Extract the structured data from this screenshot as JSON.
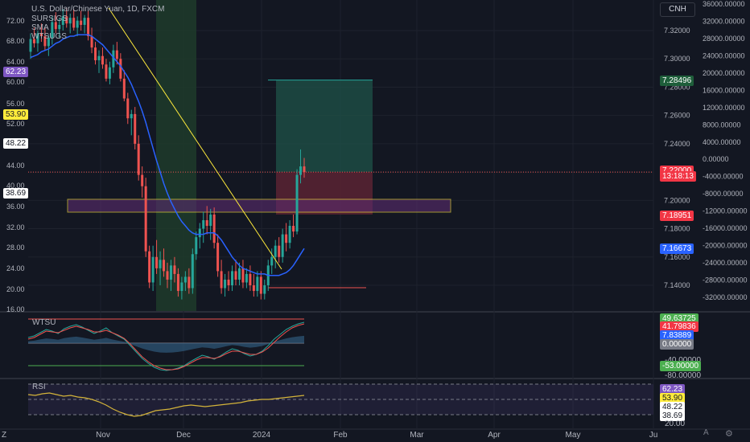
{
  "header": {
    "title": "U.S. Dollar/Chinese Yuan, 1D, FXCM",
    "indicators": [
      "SURSIGS",
      "SMA",
      "WTSUGS"
    ],
    "currency_button": "CNH"
  },
  "colors": {
    "background": "#131722",
    "up": "#26a69a",
    "down": "#ef5350",
    "sma": "#2962ff",
    "trendline": "#ffeb3b",
    "zone_border": "#ffeb3b",
    "zone_fill": "#5b2c6f",
    "target_box": "#1e4f46",
    "stop_box": "#5b2333"
  },
  "chart_data": [
    {
      "type": "candlestick",
      "title": "U.S. Dollar/Chinese Yuan, 1D, FXCM",
      "price_axis": [
        "7.32000",
        "7.30000",
        "7.28000",
        "7.26000",
        "7.24000",
        "7.22000",
        "7.20000",
        "7.18000",
        "7.16000",
        "7.14000"
      ],
      "osc_axis": [
        "36000.00000",
        "32000.00000",
        "28000.00000",
        "24000.00000",
        "20000.00000",
        "16000.00000",
        "12000.00000",
        "8000.00000",
        "4000.00000",
        "0.00000",
        "-4000.00000",
        "-8000.00000",
        "-12000.00000",
        "-16000.00000",
        "-20000.00000",
        "-24000.00000",
        "-28000.00000",
        "-32000.00000"
      ],
      "left_axis": [
        "72.00",
        "68.00",
        "64.00",
        "60.00",
        "56.00",
        "52.00",
        "44.00",
        "40.00",
        "36.00",
        "32.00",
        "28.00",
        "24.00",
        "20.00",
        "16.00"
      ],
      "x_labels": [
        "Z",
        "Nov",
        "Dec",
        "2024",
        "Feb",
        "Mar",
        "Apr",
        "May",
        "Ju"
      ],
      "price_tags": {
        "target": "7.28496",
        "current": "7.22000",
        "countdown": "13:18:13",
        "stop": "7.18951",
        "sma": "7.16673"
      },
      "left_tags": {
        "purple": "62.23",
        "yellow": "53.90",
        "white1": "48.22",
        "white2": "38.69"
      },
      "ohlc": [
        [
          7.305,
          7.318,
          7.3,
          7.314
        ],
        [
          7.314,
          7.322,
          7.308,
          7.311
        ],
        [
          7.311,
          7.32,
          7.305,
          7.318
        ],
        [
          7.318,
          7.325,
          7.312,
          7.316
        ],
        [
          7.316,
          7.322,
          7.306,
          7.309
        ],
        [
          7.309,
          7.317,
          7.302,
          7.315
        ],
        [
          7.315,
          7.33,
          7.31,
          7.326
        ],
        [
          7.326,
          7.333,
          7.318,
          7.321
        ],
        [
          7.321,
          7.329,
          7.315,
          7.324
        ],
        [
          7.324,
          7.335,
          7.32,
          7.33
        ],
        [
          7.33,
          7.336,
          7.322,
          7.325
        ],
        [
          7.325,
          7.332,
          7.318,
          7.329
        ],
        [
          7.329,
          7.335,
          7.32,
          7.322
        ],
        [
          7.322,
          7.33,
          7.316,
          7.327
        ],
        [
          7.327,
          7.334,
          7.32,
          7.324
        ],
        [
          7.324,
          7.331,
          7.318,
          7.329
        ],
        [
          7.329,
          7.334,
          7.313,
          7.316
        ],
        [
          7.316,
          7.322,
          7.304,
          7.308
        ],
        [
          7.308,
          7.312,
          7.296,
          7.299
        ],
        [
          7.299,
          7.306,
          7.29,
          7.302
        ],
        [
          7.302,
          7.308,
          7.293,
          7.296
        ],
        [
          7.296,
          7.3,
          7.284,
          7.286
        ],
        [
          7.286,
          7.298,
          7.282,
          7.294
        ],
        [
          7.294,
          7.31,
          7.29,
          7.306
        ],
        [
          7.306,
          7.312,
          7.296,
          7.3
        ],
        [
          7.3,
          7.304,
          7.284,
          7.286
        ],
        [
          7.286,
          7.292,
          7.27,
          7.272
        ],
        [
          7.272,
          7.276,
          7.254,
          7.258
        ],
        [
          7.258,
          7.264,
          7.246,
          7.261
        ],
        [
          7.261,
          7.266,
          7.236,
          7.24
        ],
        [
          7.24,
          7.246,
          7.214,
          7.218
        ],
        [
          7.218,
          7.224,
          7.202,
          7.21
        ],
        [
          7.21,
          7.216,
          7.16,
          7.164
        ],
        [
          7.164,
          7.168,
          7.138,
          7.142
        ],
        [
          7.142,
          7.168,
          7.136,
          7.16
        ],
        [
          7.16,
          7.172,
          7.148,
          7.152
        ],
        [
          7.152,
          7.164,
          7.14,
          7.158
        ],
        [
          7.158,
          7.166,
          7.146,
          7.15
        ],
        [
          7.15,
          7.156,
          7.138,
          7.144
        ],
        [
          7.144,
          7.158,
          7.136,
          7.154
        ],
        [
          7.154,
          7.16,
          7.142,
          7.148
        ],
        [
          7.148,
          7.152,
          7.132,
          7.136
        ],
        [
          7.136,
          7.146,
          7.13,
          7.142
        ],
        [
          7.142,
          7.15,
          7.136,
          7.146
        ],
        [
          7.146,
          7.152,
          7.134,
          7.138
        ],
        [
          7.138,
          7.166,
          7.134,
          7.162
        ],
        [
          7.162,
          7.178,
          7.158,
          7.174
        ],
        [
          7.174,
          7.184,
          7.166,
          7.18
        ],
        [
          7.18,
          7.192,
          7.17,
          7.186
        ],
        [
          7.186,
          7.196,
          7.176,
          7.182
        ],
        [
          7.182,
          7.194,
          7.172,
          7.19
        ],
        [
          7.19,
          7.195,
          7.166,
          7.17
        ],
        [
          7.17,
          7.176,
          7.146,
          7.15
        ],
        [
          7.15,
          7.158,
          7.134,
          7.138
        ],
        [
          7.138,
          7.148,
          7.132,
          7.144
        ],
        [
          7.144,
          7.15,
          7.136,
          7.14
        ],
        [
          7.14,
          7.154,
          7.136,
          7.15
        ],
        [
          7.15,
          7.158,
          7.14,
          7.144
        ],
        [
          7.144,
          7.156,
          7.14,
          7.152
        ],
        [
          7.152,
          7.158,
          7.138,
          7.142
        ],
        [
          7.142,
          7.152,
          7.138,
          7.148
        ],
        [
          7.148,
          7.154,
          7.136,
          7.14
        ],
        [
          7.14,
          7.148,
          7.132,
          7.136
        ],
        [
          7.136,
          7.15,
          7.132,
          7.146
        ],
        [
          7.146,
          7.15,
          7.13,
          7.134
        ],
        [
          7.134,
          7.144,
          7.13,
          7.14
        ],
        [
          7.14,
          7.158,
          7.136,
          7.154
        ],
        [
          7.154,
          7.166,
          7.148,
          7.16
        ],
        [
          7.16,
          7.172,
          7.152,
          7.168
        ],
        [
          7.168,
          7.174,
          7.156,
          7.16
        ],
        [
          7.16,
          7.18,
          7.156,
          7.176
        ],
        [
          7.176,
          7.184,
          7.164,
          7.17
        ],
        [
          7.17,
          7.186,
          7.166,
          7.182
        ],
        [
          7.182,
          7.19,
          7.174,
          7.178
        ],
        [
          7.178,
          7.222,
          7.176,
          7.218
        ],
        [
          7.218,
          7.236,
          7.212,
          7.224
        ],
        [
          7.224,
          7.23,
          7.216,
          7.22
        ]
      ],
      "sma": [
        7.301,
        7.302,
        7.303,
        7.305,
        7.306,
        7.307,
        7.309,
        7.311,
        7.312,
        7.314,
        7.315,
        7.316,
        7.316,
        7.317,
        7.317,
        7.317,
        7.317,
        7.316,
        7.314,
        7.312,
        7.31,
        7.307,
        7.304,
        7.301,
        7.298,
        7.295,
        7.291,
        7.287,
        7.282,
        7.276,
        7.27,
        7.263,
        7.255,
        7.246,
        7.237,
        7.228,
        7.22,
        7.212,
        7.205,
        7.199,
        7.194,
        7.189,
        7.185,
        7.182,
        7.179,
        7.177,
        7.176,
        7.176,
        7.176,
        7.177,
        7.177,
        7.177,
        7.175,
        7.172,
        7.168,
        7.164,
        7.16,
        7.157,
        7.154,
        7.152,
        7.151,
        7.15,
        7.149,
        7.148,
        7.148,
        7.148,
        7.147,
        7.147,
        7.147,
        7.147,
        7.148,
        7.149,
        7.151,
        7.154,
        7.158,
        7.162,
        7.166
      ]
    },
    {
      "type": "line",
      "title": "WTSU",
      "tags": [
        "49.63725",
        "41.79836",
        "7.83889",
        "0.00000"
      ],
      "axis": [
        "-40.00000",
        "-53.00000",
        "-80.00000"
      ]
    },
    {
      "type": "line",
      "title": "RSI",
      "tags": [
        "62.23",
        "53.90",
        "48.22",
        "38.69"
      ],
      "axis": [
        "20.00"
      ]
    }
  ],
  "footer": {
    "auto_label": "A",
    "settings_icon": "gear-icon"
  }
}
